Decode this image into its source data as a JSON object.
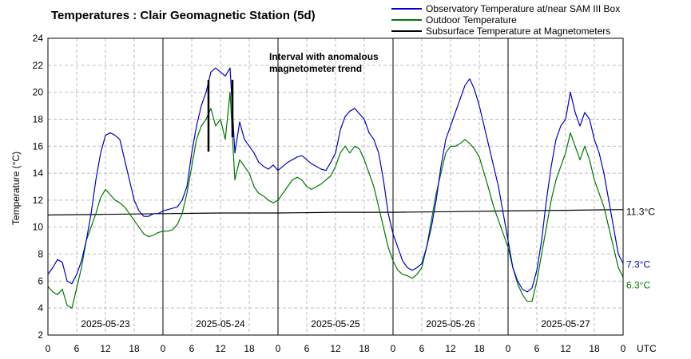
{
  "chart_data": {
    "type": "line",
    "title": "Temperatures : Clair Geomagnetic Station (5d)",
    "ylabel": "Temperature (°C)",
    "xlabel": "UTC",
    "ylim": [
      2,
      24
    ],
    "yticks": [
      2,
      4,
      6,
      8,
      10,
      12,
      14,
      16,
      18,
      20,
      22,
      24
    ],
    "xlim_hours": [
      0,
      120
    ],
    "xtick_labels": [
      "0",
      "6",
      "12",
      "18",
      "0",
      "6",
      "12",
      "18",
      "0",
      "6",
      "12",
      "18",
      "0",
      "6",
      "12",
      "18",
      "0",
      "6",
      "12",
      "18",
      "0"
    ],
    "day_labels": [
      "2025-05-23",
      "2025-05-24",
      "2025-05-25",
      "2025-05-26",
      "2025-05-27"
    ],
    "annotation": {
      "line1": "Interval with anomalous",
      "line2": "magnetometer trend",
      "hours": [
        33.5,
        38.5
      ]
    },
    "series": [
      {
        "name": "Observatory Temperature at/near SAM III Box",
        "color": "#0000cc",
        "end_label": "7.3°C",
        "x": [
          0,
          1,
          2,
          3,
          4,
          5,
          6,
          7,
          8,
          9,
          10,
          11,
          12,
          13,
          14,
          15,
          16,
          17,
          18,
          19,
          20,
          21,
          22,
          23,
          24,
          25,
          26,
          27,
          28,
          29,
          30,
          31,
          32,
          33,
          34,
          35,
          36,
          37,
          38,
          39,
          40,
          41,
          42,
          43,
          44,
          45,
          46,
          47,
          48,
          49,
          50,
          51,
          52,
          53,
          54,
          55,
          56,
          57,
          58,
          59,
          60,
          61,
          62,
          63,
          64,
          65,
          66,
          67,
          68,
          69,
          70,
          71,
          72,
          73,
          74,
          75,
          76,
          77,
          78,
          79,
          80,
          81,
          82,
          83,
          84,
          85,
          86,
          87,
          88,
          89,
          90,
          91,
          92,
          93,
          94,
          95,
          96,
          97,
          98,
          99,
          100,
          101,
          102,
          103,
          104,
          105,
          106,
          107,
          108,
          109,
          110,
          111,
          112,
          113,
          114,
          115,
          116,
          117,
          118,
          119,
          120
        ],
        "values": [
          6.5,
          7.0,
          7.6,
          7.4,
          6.0,
          5.8,
          6.5,
          7.5,
          9.0,
          11.0,
          13.5,
          15.5,
          16.8,
          17.0,
          16.8,
          16.5,
          15.0,
          13.5,
          12.0,
          11.2,
          10.8,
          10.8,
          11.0,
          11.0,
          11.2,
          11.3,
          11.4,
          11.5,
          12.0,
          13.0,
          15.5,
          17.5,
          19.0,
          20.0,
          21.5,
          21.8,
          21.5,
          21.2,
          21.8,
          15.5,
          17.8,
          16.5,
          16.0,
          15.5,
          14.8,
          14.5,
          14.3,
          14.6,
          14.2,
          14.5,
          14.8,
          15.0,
          15.2,
          15.3,
          15.0,
          14.7,
          14.5,
          14.3,
          14.2,
          14.8,
          15.5,
          17.2,
          18.2,
          18.6,
          18.8,
          18.4,
          18.0,
          17.0,
          16.5,
          15.5,
          13.5,
          11.0,
          9.5,
          8.5,
          7.5,
          7.0,
          6.8,
          7.0,
          7.3,
          8.5,
          10.0,
          12.0,
          14.5,
          16.5,
          17.5,
          18.5,
          19.5,
          20.5,
          21.0,
          20.2,
          19.0,
          17.5,
          16.0,
          14.5,
          13.0,
          11.0,
          9.0,
          7.0,
          6.0,
          5.4,
          5.2,
          5.5,
          6.8,
          9.0,
          12.0,
          14.5,
          16.5,
          17.5,
          18.0,
          20.0,
          18.5,
          17.5,
          18.5,
          18.0,
          16.5,
          15.5,
          14.0,
          12.0,
          10.0,
          8.0,
          7.3
        ]
      },
      {
        "name": "Outdoor Temperature",
        "color": "#007700",
        "end_label": "6.3°C",
        "x": [
          0,
          1,
          2,
          3,
          4,
          5,
          6,
          7,
          8,
          9,
          10,
          11,
          12,
          13,
          14,
          15,
          16,
          17,
          18,
          19,
          20,
          21,
          22,
          23,
          24,
          25,
          26,
          27,
          28,
          29,
          30,
          31,
          32,
          33,
          34,
          35,
          36,
          37,
          38,
          39,
          40,
          41,
          42,
          43,
          44,
          45,
          46,
          47,
          48,
          49,
          50,
          51,
          52,
          53,
          54,
          55,
          56,
          57,
          58,
          59,
          60,
          61,
          62,
          63,
          64,
          65,
          66,
          67,
          68,
          69,
          70,
          71,
          72,
          73,
          74,
          75,
          76,
          77,
          78,
          79,
          80,
          81,
          82,
          83,
          84,
          85,
          86,
          87,
          88,
          89,
          90,
          91,
          92,
          93,
          94,
          95,
          96,
          97,
          98,
          99,
          100,
          101,
          102,
          103,
          104,
          105,
          106,
          107,
          108,
          109,
          110,
          111,
          112,
          113,
          114,
          115,
          116,
          117,
          118,
          119,
          120
        ],
        "values": [
          5.6,
          5.2,
          5.0,
          5.4,
          4.2,
          4.0,
          5.5,
          7.0,
          9.0,
          10.0,
          11.0,
          12.2,
          12.8,
          12.4,
          12.0,
          11.8,
          11.5,
          11.0,
          10.5,
          10.0,
          9.5,
          9.3,
          9.4,
          9.6,
          9.7,
          9.7,
          9.8,
          10.2,
          11.0,
          12.5,
          14.5,
          16.5,
          17.5,
          18.0,
          18.8,
          17.5,
          18.0,
          16.5,
          20.0,
          13.5,
          15.0,
          14.5,
          14.0,
          13.0,
          12.5,
          12.3,
          12.0,
          11.8,
          12.0,
          12.5,
          13.0,
          13.5,
          13.7,
          13.5,
          13.0,
          12.8,
          13.0,
          13.2,
          13.5,
          13.8,
          14.5,
          15.5,
          16.0,
          15.5,
          16.0,
          15.8,
          15.0,
          14.0,
          13.0,
          11.5,
          10.0,
          8.5,
          7.5,
          6.8,
          6.5,
          6.4,
          6.2,
          6.5,
          7.0,
          8.5,
          10.5,
          12.5,
          14.0,
          15.5,
          16.0,
          16.0,
          16.2,
          16.5,
          16.2,
          15.8,
          15.2,
          14.0,
          12.8,
          11.5,
          10.5,
          9.5,
          8.5,
          7.0,
          5.8,
          5.0,
          4.5,
          4.5,
          6.0,
          8.0,
          10.0,
          12.0,
          13.5,
          14.5,
          15.5,
          17.0,
          16.0,
          15.0,
          16.0,
          15.0,
          13.5,
          12.5,
          11.5,
          10.0,
          8.5,
          7.0,
          6.3
        ]
      },
      {
        "name": "Subsurface Temperature at Magnetometers",
        "color": "#000000",
        "end_label": "11.3°C",
        "x": [
          0,
          12,
          24,
          36,
          48,
          60,
          72,
          84,
          96,
          108,
          120
        ],
        "values": [
          10.9,
          10.95,
          11.0,
          11.05,
          11.05,
          11.1,
          11.1,
          11.15,
          11.2,
          11.25,
          11.3
        ]
      }
    ]
  }
}
